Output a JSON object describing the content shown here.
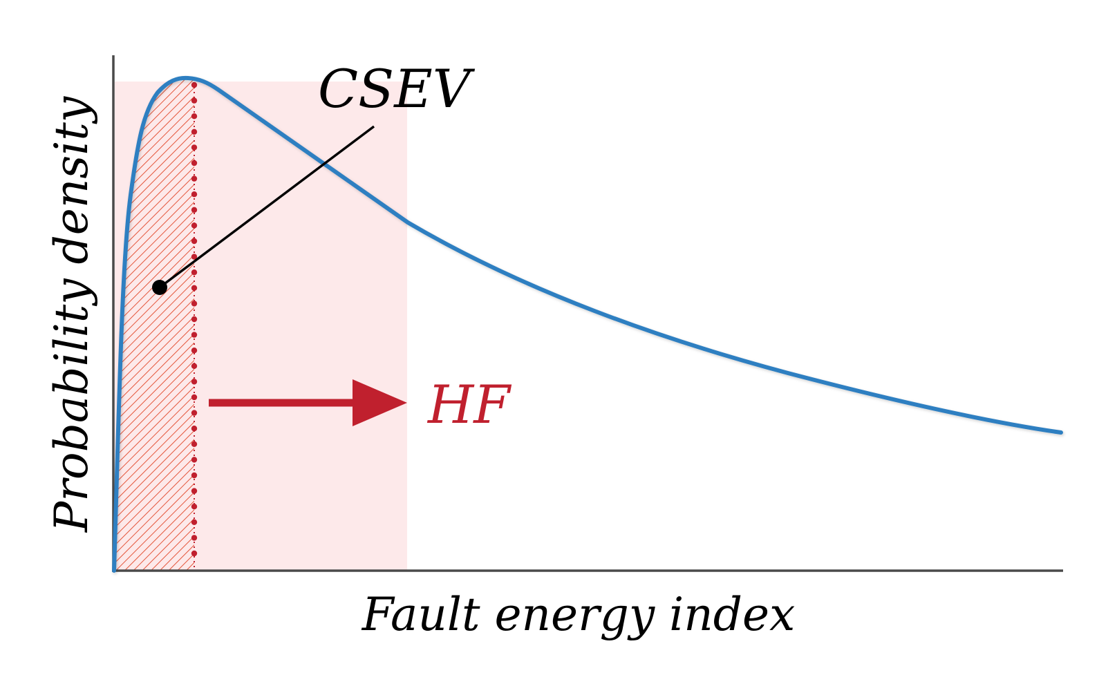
{
  "labels": {
    "ylabel": "Probability density",
    "xlabel": "Fault energy index",
    "callout": "CSEV",
    "arrow_label": "HF"
  },
  "colors": {
    "curve": "#2f7fc1",
    "accent": "#c0202e",
    "shaded_region": "#fde9ea",
    "hatch": "#e4553a",
    "axis": "#4a4a4a",
    "text": "#000000"
  },
  "curve": {
    "shape": "right-skewed unimodal density rising steeply from zero, peaking early, then decaying slowly"
  },
  "regions": {
    "hatched_band": "hatched region under the curve up to the dotted threshold line",
    "shaded_band": "light pink band extending from the threshold to where the arrow points"
  },
  "icons": {
    "threshold": "dotted-vertical-line",
    "arrow": "right-arrow",
    "callout_marker": "dot-with-leader-line"
  }
}
